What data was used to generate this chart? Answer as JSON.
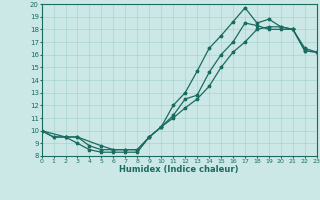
{
  "xlabel": "Humidex (Indice chaleur)",
  "bg_color": "#cce8e6",
  "grid_color": "#a8d4d0",
  "line_color": "#1a6b60",
  "xlim": [
    0,
    23
  ],
  "ylim": [
    8,
    20
  ],
  "xticks": [
    0,
    1,
    2,
    3,
    4,
    5,
    6,
    7,
    8,
    9,
    10,
    11,
    12,
    13,
    14,
    15,
    16,
    17,
    18,
    19,
    20,
    21,
    22,
    23
  ],
  "yticks": [
    8,
    9,
    10,
    11,
    12,
    13,
    14,
    15,
    16,
    17,
    18,
    19,
    20
  ],
  "curve1_x": [
    0,
    1,
    2,
    3,
    4,
    5,
    6,
    7,
    8,
    9,
    10,
    11,
    12,
    13,
    14,
    15,
    16,
    17,
    18,
    19,
    20,
    21,
    22,
    23
  ],
  "curve1_y": [
    10,
    9.5,
    9.5,
    9.0,
    8.5,
    8.3,
    8.3,
    8.3,
    8.3,
    9.5,
    10.3,
    11.2,
    12.5,
    12.8,
    14.6,
    16.0,
    17.0,
    18.5,
    18.3,
    18.0,
    18.0,
    18.0,
    16.3,
    16.2
  ],
  "curve2_x": [
    0,
    1,
    2,
    3,
    4,
    5,
    6,
    7,
    8,
    9,
    10,
    11,
    12,
    13,
    14,
    15,
    16,
    17,
    18,
    19,
    20,
    21,
    22,
    23
  ],
  "curve2_y": [
    10,
    9.5,
    9.5,
    9.5,
    8.8,
    8.5,
    8.5,
    8.5,
    8.5,
    9.5,
    10.3,
    12.0,
    13.0,
    14.7,
    16.5,
    17.5,
    18.6,
    19.7,
    18.5,
    18.8,
    18.2,
    18.0,
    16.5,
    16.2
  ],
  "curve3_x": [
    0,
    2,
    3,
    5,
    6,
    7,
    8,
    9,
    10,
    11,
    12,
    13,
    14,
    15,
    16,
    17,
    18,
    19,
    20,
    21,
    22,
    23
  ],
  "curve3_y": [
    10,
    9.5,
    9.5,
    8.8,
    8.5,
    8.5,
    8.5,
    9.5,
    10.3,
    11.0,
    11.8,
    12.5,
    13.5,
    15.0,
    16.2,
    17.0,
    18.0,
    18.2,
    18.2,
    18.0,
    16.3,
    16.2
  ]
}
